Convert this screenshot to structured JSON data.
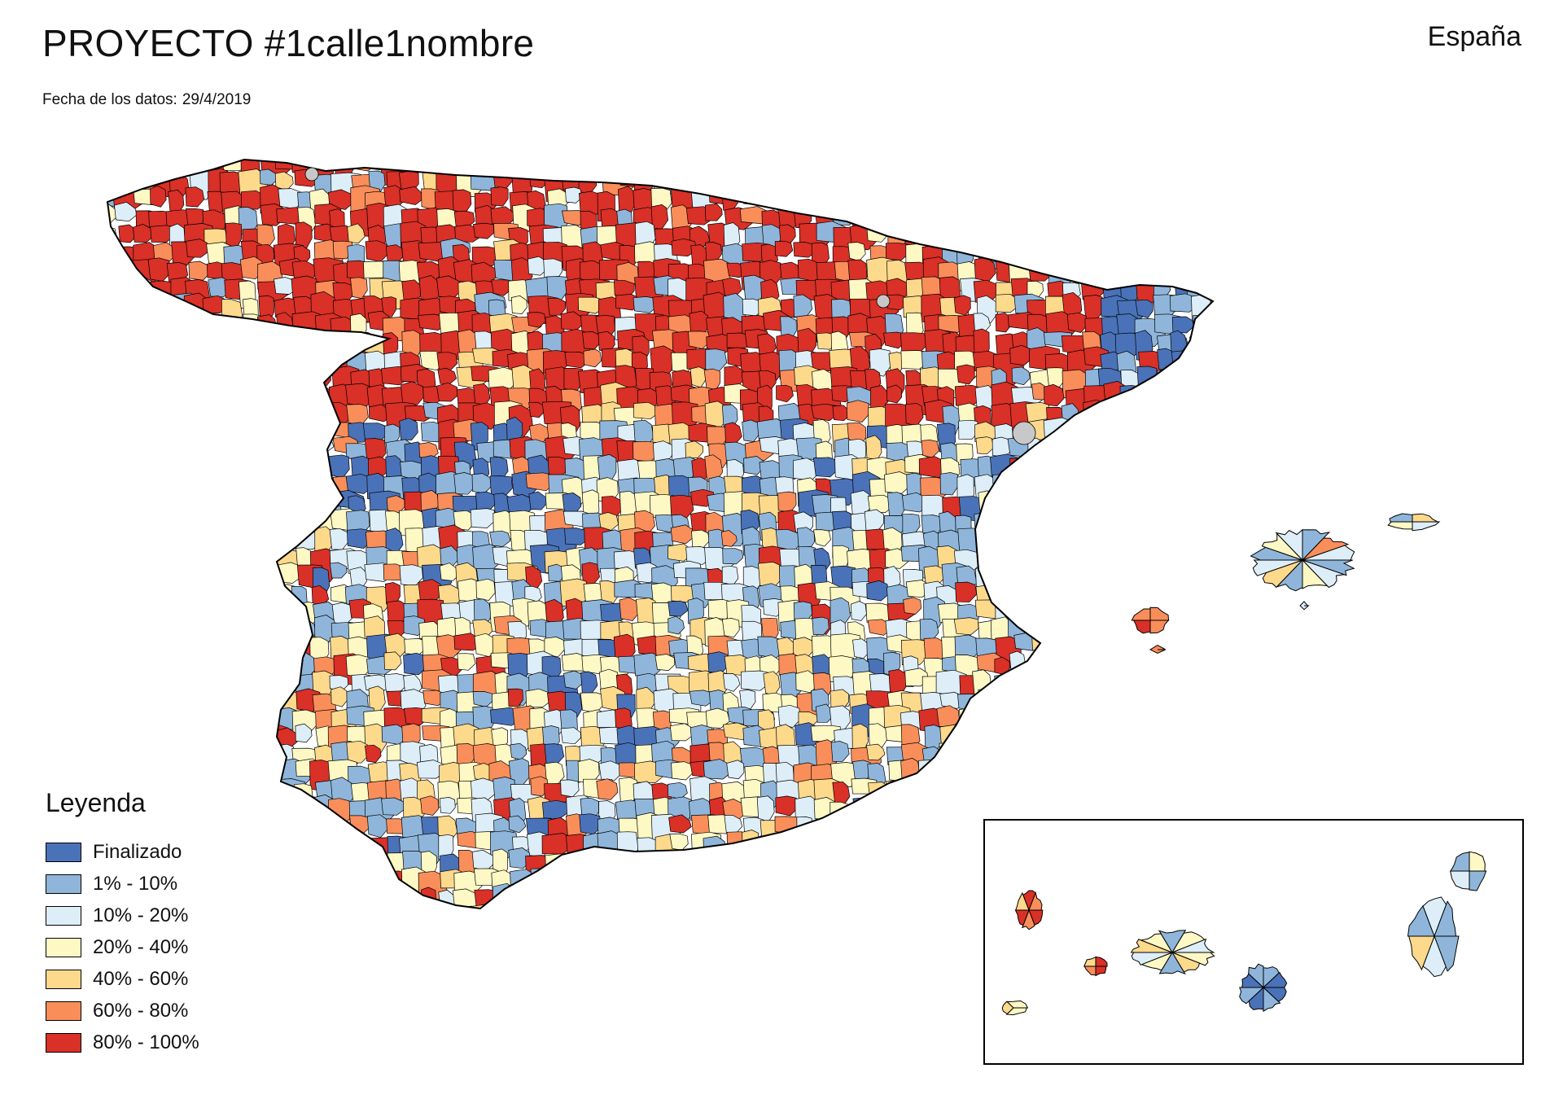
{
  "header": {
    "title": "PROYECTO #1calle1nombre",
    "country": "España",
    "date_label": "Fecha de los datos:",
    "date_value": "29/4/2019"
  },
  "legend": {
    "title": "Leyenda",
    "items": [
      {
        "label": "Finalizado",
        "color": "#4a72b8"
      },
      {
        "label": "1% - 10%",
        "color": "#8fb6da"
      },
      {
        "label": "10% - 20%",
        "color": "#ddeef8"
      },
      {
        "label": "20% - 40%",
        "color": "#fdf8c4"
      },
      {
        "label": "40% - 60%",
        "color": "#fdd98c"
      },
      {
        "label": "60% - 80%",
        "color": "#f98e5a"
      },
      {
        "label": "80% - 100%",
        "color": "#d93027"
      }
    ]
  },
  "no_data_color": "#c8c8c8",
  "border_color": "#000000"
}
